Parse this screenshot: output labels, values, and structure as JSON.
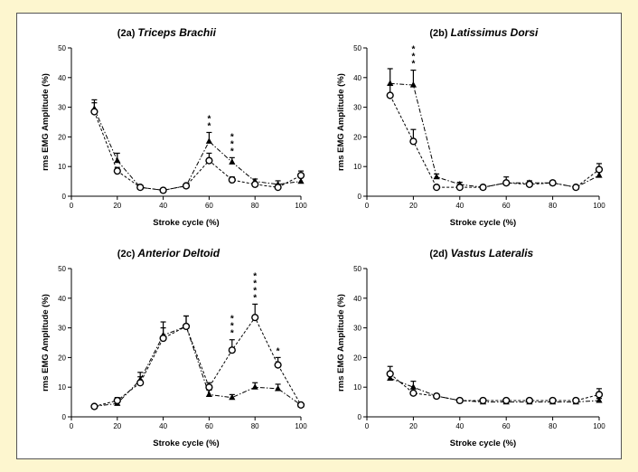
{
  "figure": {
    "background": "#fdf6cf",
    "border_color": "#555555"
  },
  "chart_data": [
    {
      "type": "line",
      "panel_label": "(2a)",
      "title": "Triceps Brachii",
      "xlabel": "Stroke cycle (%)",
      "ylabel": "rms EMG Amplitude (%)",
      "xlim": [
        0,
        100
      ],
      "ylim": [
        0,
        50
      ],
      "xticks": [
        0,
        20,
        40,
        60,
        80,
        100
      ],
      "yticks": [
        0,
        10,
        20,
        30,
        40,
        50
      ],
      "x": [
        10,
        20,
        30,
        40,
        50,
        60,
        70,
        80,
        90,
        100
      ],
      "series": [
        {
          "marker": "triangle",
          "values": [
            29.5,
            12,
            3,
            2,
            3.5,
            18.5,
            11.5,
            5,
            4,
            5
          ],
          "errors": [
            3,
            2.5,
            0.7,
            0.4,
            0.5,
            3,
            1.5,
            0.8,
            1.2,
            1.5
          ]
        },
        {
          "marker": "circle",
          "values": [
            28.5,
            8.5,
            3,
            2,
            3.5,
            12,
            5.5,
            4,
            3,
            7
          ],
          "errors": [
            3,
            1.2,
            0.7,
            0.4,
            0.5,
            2.5,
            1,
            0.7,
            1,
            1.5
          ]
        }
      ],
      "annotations": [
        {
          "x": 60,
          "text": "**"
        },
        {
          "x": 70,
          "text": "***"
        }
      ]
    },
    {
      "type": "line",
      "panel_label": "(2b)",
      "title": "Latissimus Dorsi",
      "xlabel": "Stroke cycle (%)",
      "ylabel": "rms EMG Amplitude (%)",
      "xlim": [
        0,
        100
      ],
      "ylim": [
        0,
        50
      ],
      "xticks": [
        0,
        20,
        40,
        60,
        80,
        100
      ],
      "yticks": [
        0,
        10,
        20,
        30,
        40,
        50
      ],
      "x": [
        10,
        20,
        30,
        40,
        50,
        60,
        70,
        80,
        90,
        100
      ],
      "series": [
        {
          "marker": "triangle",
          "values": [
            38,
            37.5,
            6.5,
            4,
            3,
            4.5,
            4.5,
            4.5,
            3,
            7
          ],
          "errors": [
            5,
            5,
            1,
            0.7,
            0.7,
            0.7,
            0.7,
            0.7,
            0.5,
            1.5
          ]
        },
        {
          "marker": "circle",
          "values": [
            34,
            18.5,
            3,
            3,
            3,
            4.5,
            4,
            4.5,
            3,
            9
          ],
          "errors": [
            3.5,
            4,
            0.7,
            0.7,
            0.7,
            2,
            0.7,
            0.7,
            0.5,
            2
          ]
        }
      ],
      "annotations": [
        {
          "x": 20,
          "text": "***"
        }
      ]
    },
    {
      "type": "line",
      "panel_label": "(2c)",
      "title": "Anterior Deltoid",
      "xlabel": "Stroke cycle (%)",
      "ylabel": "rms EMG Amplitude (%)",
      "xlim": [
        0,
        100
      ],
      "ylim": [
        0,
        50
      ],
      "xticks": [
        0,
        20,
        40,
        60,
        80,
        100
      ],
      "yticks": [
        0,
        10,
        20,
        30,
        40,
        50
      ],
      "x": [
        10,
        20,
        30,
        40,
        50,
        60,
        70,
        80,
        90,
        100
      ],
      "series": [
        {
          "marker": "triangle",
          "values": [
            3.5,
            4.5,
            12.5,
            27.5,
            30.5,
            7.5,
            6.5,
            10,
            9.5,
            4
          ],
          "errors": [
            0.5,
            1,
            2.5,
            4.5,
            3.5,
            1.5,
            1,
            1.5,
            1.5,
            0.5
          ]
        },
        {
          "marker": "circle",
          "values": [
            3.5,
            5.5,
            11.5,
            26.5,
            30.5,
            10,
            22.5,
            33.5,
            17.5,
            4
          ],
          "errors": [
            0.5,
            1,
            2,
            3.5,
            3.5,
            1.5,
            3.5,
            4.5,
            2.5,
            0.5
          ]
        }
      ],
      "annotations": [
        {
          "x": 70,
          "text": "***"
        },
        {
          "x": 80,
          "text": "****"
        },
        {
          "x": 90,
          "text": "*"
        }
      ]
    },
    {
      "type": "line",
      "panel_label": "(2d)",
      "title": "Vastus Lateralis",
      "xlabel": "Stroke cycle (%)",
      "ylabel": "rms EMG Amplitude (%)",
      "xlim": [
        0,
        100
      ],
      "ylim": [
        0,
        50
      ],
      "xticks": [
        0,
        20,
        40,
        60,
        80,
        100
      ],
      "yticks": [
        0,
        10,
        20,
        30,
        40,
        50
      ],
      "x": [
        10,
        20,
        30,
        40,
        50,
        60,
        70,
        80,
        90,
        100
      ],
      "series": [
        {
          "marker": "triangle",
          "values": [
            13,
            10,
            7,
            5.5,
            5,
            5,
            5,
            5,
            5,
            5.5
          ],
          "errors": [
            2,
            2,
            0.7,
            0.5,
            0.5,
            0.5,
            0.5,
            0.5,
            0.5,
            0.7
          ]
        },
        {
          "marker": "circle",
          "values": [
            14.5,
            8,
            7,
            5.5,
            5.5,
            5.5,
            5.5,
            5.5,
            5.5,
            7.5
          ],
          "errors": [
            2.5,
            1.5,
            0.7,
            0.7,
            0.7,
            0.7,
            0.7,
            0.7,
            0.7,
            2
          ]
        }
      ],
      "annotations": []
    }
  ]
}
